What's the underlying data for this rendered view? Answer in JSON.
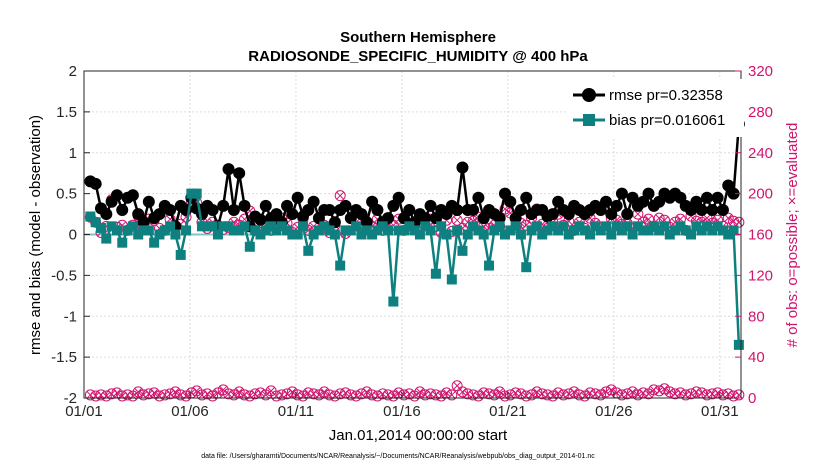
{
  "chart_data": {
    "type": "line",
    "title": "Southern Hemisphere",
    "subtitle": "RADIOSONDE_SPECIFIC_HUMIDITY @ 400 hPa",
    "xlabel": "Jan.01,2014 00:00:00 start",
    "ylabel": "rmse and bias (model - observation)",
    "ylabel_right": "# of obs: o=possible; ×=evaluated",
    "xlim": [
      1,
      32
    ],
    "ylim": [
      -2,
      2
    ],
    "ylim_right": [
      0,
      320
    ],
    "x_ticks": [
      1,
      6,
      11,
      16,
      21,
      26,
      31
    ],
    "x_tick_labels": [
      "01/01",
      "01/06",
      "01/11",
      "01/16",
      "01/21",
      "01/26",
      "01/31"
    ],
    "y_ticks": [
      "-2",
      "-1.5",
      "-1",
      "-0.5",
      "0",
      "0.5",
      "1",
      "1.5",
      "2"
    ],
    "y_ticks_right": [
      "0",
      "40",
      "80",
      "120",
      "160",
      "200",
      "240",
      "280",
      "320"
    ],
    "grid": true,
    "legend_position": "top-right",
    "footnote": "data file: /Users/gharamti/Documents/NCAR/Reanalysis/~/Documents/NCAR/Reanalysis/webpub/obs_diag_output_2014-01.nc",
    "colors": {
      "rmse": "#000000",
      "bias": "#0f8080",
      "obs_count": "#d0156e",
      "zero_line": "#7fc7c7"
    },
    "series": [
      {
        "name": "rmse pr=0.32358",
        "values": [
          0.65,
          0.62,
          0.32,
          0.25,
          0.4,
          0.48,
          0.3,
          0.45,
          0.48,
          0.25,
          0.15,
          0.4,
          0.2,
          0.25,
          0.35,
          0.3,
          0.1,
          0.35,
          0.3,
          0.45,
          0.32,
          0.25,
          0.35,
          0.3,
          0.1,
          0.35,
          0.8,
          0.3,
          0.75,
          0.35,
          0.1,
          0.22,
          0.18,
          0.35,
          0.2,
          0.25,
          0.15,
          0.35,
          0.25,
          0.45,
          0.22,
          0.3,
          0.4,
          0.2,
          0.3,
          0.3,
          0.15,
          0.3,
          0.35,
          0.2,
          0.3,
          0.25,
          0.15,
          0.4,
          0.3,
          0.15,
          0.2,
          0.35,
          0.45,
          0.2,
          0.3,
          0.15,
          0.25,
          0.2,
          0.35,
          0.2,
          0.3,
          0.25,
          0.35,
          0.3,
          0.82,
          0.3,
          0.3,
          0.45,
          0.2,
          0.3,
          0.25,
          0.2,
          0.5,
          0.4,
          0.2,
          0.3,
          0.45,
          0.25,
          0.3,
          0.3,
          0.22,
          0.25,
          0.4,
          0.3,
          0.25,
          0.35,
          0.3,
          0.25,
          0.3,
          0.35,
          0.3,
          0.4,
          0.25,
          0.35,
          0.5,
          0.25,
          0.45,
          0.35,
          0.4,
          0.5,
          0.35,
          0.4,
          0.5,
          0.45,
          0.5,
          0.45,
          0.35,
          0.3,
          0.4,
          0.3,
          0.45,
          0.3,
          0.45,
          0.3,
          0.6,
          0.5,
          1.35
        ],
        "markers": "filled-circle"
      },
      {
        "name": "bias pr=0.016061",
        "values": [
          0.22,
          0.15,
          0.08,
          -0.05,
          0.1,
          0.05,
          -0.1,
          0.05,
          0.1,
          0.0,
          0.05,
          0.05,
          -0.1,
          0.0,
          0.05,
          0.1,
          0.0,
          -0.25,
          0.05,
          0.5,
          0.5,
          0.1,
          0.1,
          0.1,
          0.0,
          0.1,
          0.1,
          0.05,
          0.05,
          0.1,
          -0.15,
          0.05,
          0.0,
          0.05,
          0.1,
          0.05,
          0.1,
          0.05,
          0.0,
          0.0,
          0.1,
          -0.2,
          0.0,
          0.05,
          0.1,
          0.05,
          0.0,
          -0.38,
          0.05,
          0.05,
          0.1,
          0.0,
          0.05,
          0.0,
          0.05,
          0.1,
          0.05,
          -0.82,
          0.05,
          0.05,
          0.1,
          0.05,
          0.0,
          0.1,
          0.05,
          -0.48,
          0.1,
          0.0,
          -0.55,
          0.05,
          -0.2,
          0.0,
          0.1,
          0.05,
          0.0,
          -0.38,
          0.05,
          0.1,
          0.0,
          0.05,
          0.1,
          0.0,
          -0.4,
          0.05,
          0.1,
          0.0,
          0.05,
          0.1,
          0.05,
          0.1,
          0.0,
          0.05,
          0.1,
          0.05,
          0.0,
          0.1,
          0.05,
          0.1,
          0.0,
          0.1,
          0.05,
          0.1,
          0.0,
          0.1,
          0.05,
          0.05,
          0.1,
          0.05,
          0.1,
          0.0,
          0.05,
          0.1,
          0.05,
          0.0,
          0.1,
          0.05,
          0.1,
          0.05,
          0.1,
          0.05,
          0.0,
          0.05,
          -1.35
        ],
        "markers": "filled-square"
      },
      {
        "values": [
          177,
          172,
          162,
          168,
          194,
          167,
          169,
          164,
          169,
          178,
          166,
          175,
          174,
          166,
          164,
          175,
          167,
          170,
          177,
          191,
          191,
          172,
          166,
          172,
          169,
          165,
          167,
          172,
          169,
          175,
          183,
          164,
          162,
          170,
          164,
          168,
          176,
          171,
          162,
          167,
          175,
          164,
          168,
          176,
          169,
          162,
          169,
          198,
          161,
          176,
          172,
          166,
          169,
          168,
          175,
          164,
          165,
          169,
          175,
          164,
          166,
          168,
          172,
          176,
          175,
          168,
          162,
          174,
          163,
          174,
          166,
          172,
          173,
          177,
          168,
          166,
          169,
          168,
          185,
          181,
          167,
          171,
          169,
          176,
          185,
          170,
          166,
          172,
          180,
          169,
          173,
          164,
          172,
          166,
          176,
          171,
          167,
          166,
          176,
          174,
          170,
          171,
          166,
          180,
          172,
          175,
          168,
          176,
          174,
          167,
          172,
          175,
          164,
          178,
          173,
          172,
          176,
          171,
          174,
          168,
          176,
          173,
          172
        ],
        "markers": "open-circle-x",
        "axis": "right"
      },
      {
        "values": [
          3,
          2,
          3,
          2,
          4,
          5,
          2,
          3,
          2,
          6,
          3,
          4,
          5,
          2,
          3,
          4,
          6,
          3,
          2,
          5,
          7,
          3,
          4,
          2,
          5,
          8,
          4,
          3,
          6,
          3,
          2,
          4,
          5,
          3,
          7,
          2,
          3,
          4,
          6,
          3,
          2,
          5,
          4,
          3,
          6,
          3,
          2,
          4,
          5,
          3,
          2,
          4,
          6,
          3,
          2,
          4,
          3,
          2,
          5,
          3,
          4,
          2,
          6,
          3,
          4,
          3,
          2,
          5,
          3,
          12,
          6,
          4,
          3,
          2,
          5,
          4,
          3,
          6,
          2,
          3,
          5,
          4,
          2,
          3,
          6,
          4,
          3,
          2,
          5,
          3,
          4,
          6,
          3,
          2,
          5,
          4,
          3,
          6,
          8,
          5,
          3,
          4,
          6,
          3,
          5,
          4,
          8,
          7,
          9,
          6,
          4,
          5,
          3,
          4,
          6,
          5,
          3,
          4,
          5,
          3,
          4,
          2,
          3
        ],
        "markers": "open-circle-x",
        "axis": "right"
      }
    ]
  }
}
